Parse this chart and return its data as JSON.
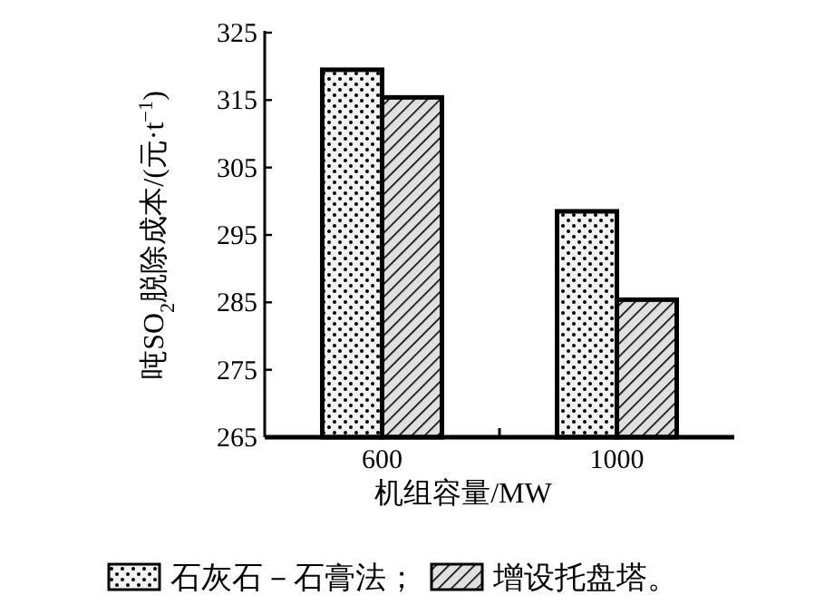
{
  "chart_data": {
    "type": "bar",
    "xlabel": "机组容量/MW",
    "ylabel": "吨SO$_{2}$脱除成本/(元·t$^{−1}$)",
    "categories": [
      "600",
      "1000"
    ],
    "series": [
      {
        "name": "石灰石－石膏法；",
        "color": "#f2f2f2",
        "values": [
          319.5,
          298.5
        ]
      },
      {
        "name": "增设托盘塔。",
        "color": "#e0e0e0",
        "values": [
          315.4,
          285.4
        ]
      }
    ],
    "ylim": [
      265,
      325
    ],
    "yticks": [
      265,
      275,
      285,
      295,
      305,
      315,
      325
    ],
    "grid": false,
    "legend": "bottom"
  }
}
